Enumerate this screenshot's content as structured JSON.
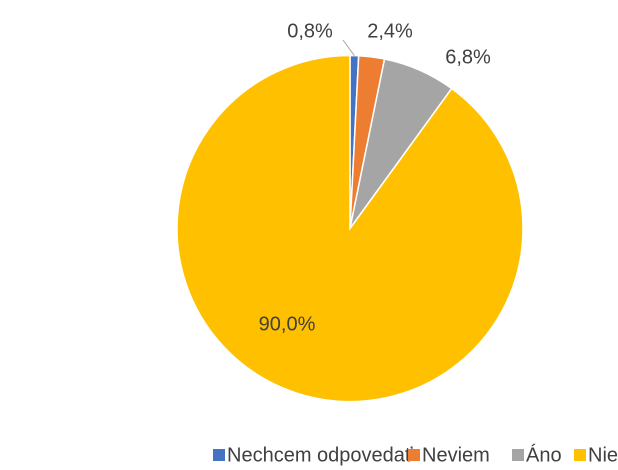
{
  "chart_data": {
    "type": "pie",
    "categories": [
      "Nechcem odpovedať",
      "Neviem",
      "Áno",
      "Nie"
    ],
    "values": [
      0.8,
      2.4,
      6.8,
      90.0
    ],
    "value_labels": [
      "0,8%",
      "2,4%",
      "6,8%",
      "90,0%"
    ],
    "colors": [
      "#4472c4",
      "#ed7d31",
      "#a5a5a5",
      "#ffc000"
    ],
    "legend": "bottom"
  }
}
